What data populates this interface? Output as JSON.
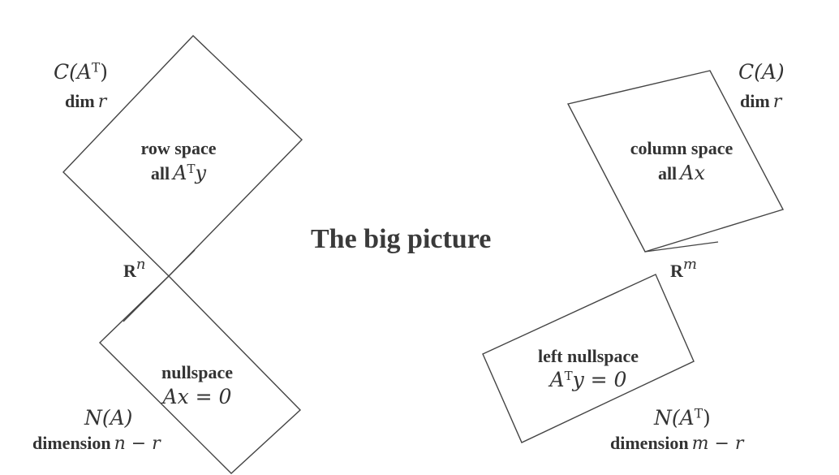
{
  "title": "The big picture",
  "left": {
    "space_symbol": "C(A",
    "space_symbol_sup": "T",
    "space_symbol_close": ")",
    "dim_word": "dim",
    "dim_var": "r",
    "row_space_label": "row space",
    "row_space_expr_word": "all",
    "row_space_expr_var": "A",
    "row_space_expr_sup": "T",
    "row_space_expr_tail": "y",
    "ambient_base": "R",
    "ambient_sup": "n",
    "null_label": "nullspace",
    "null_expr": "Ax = 0",
    "null_symbol": "N(A)",
    "null_dim_word": "dimension",
    "null_dim_expr": "n − r"
  },
  "right": {
    "space_symbol": "C(A)",
    "dim_word": "dim",
    "dim_var": "r",
    "col_space_label": "column space",
    "col_space_expr_word": "all",
    "col_space_expr_var": "Ax",
    "ambient_base": "R",
    "ambient_sup": "m",
    "left_null_label": "left nullspace",
    "left_null_expr_var": "A",
    "left_null_expr_sup": "T",
    "left_null_expr_tail": "y = 0",
    "null_symbol_open": "N(A",
    "null_symbol_sup": "T",
    "null_symbol_close": ")",
    "null_dim_word": "dimension",
    "null_dim_expr": "m − r"
  }
}
